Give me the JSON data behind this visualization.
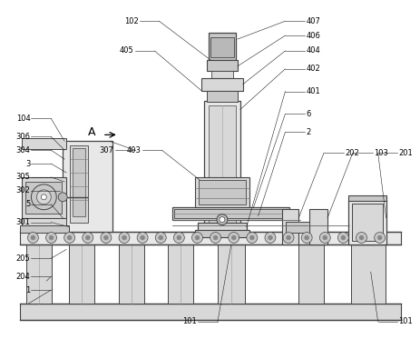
{
  "bg": "#ffffff",
  "lc": "#444444",
  "gray1": "#e8e8e8",
  "gray2": "#d8d8d8",
  "gray3": "#c8c8c8",
  "gray4": "#b8b8b8",
  "gray5": "#aaaaaa",
  "annot_color": "#222222",
  "annot_lw": 0.4,
  "lw_main": 0.7
}
